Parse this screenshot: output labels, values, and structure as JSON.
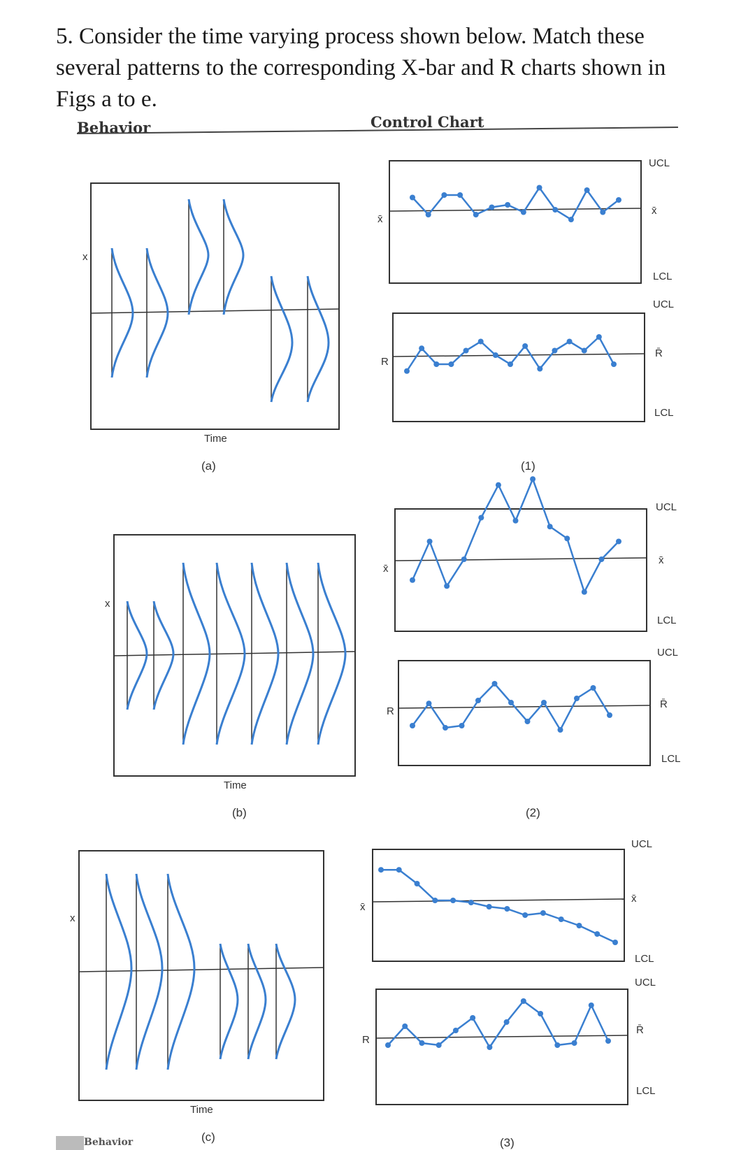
{
  "question": {
    "text": "5. Consider the time varying process shown below. Match these several patterns to the corresponding X-bar and R charts shown in Figs a to e."
  },
  "table_headers": {
    "behavior": "Behavior",
    "control_chart": "Control Chart"
  },
  "behavior_panels": [
    {
      "caption": "(a)",
      "axis_label": "Time",
      "y_label": "x"
    },
    {
      "caption": "(b)",
      "axis_label": "Time",
      "y_label": "x"
    },
    {
      "caption": "(c)",
      "axis_label": "Time",
      "y_label": "x"
    }
  ],
  "chart_labels": {
    "ucl": "UCL",
    "lcl": "LCL",
    "xbar_center": "x̄",
    "r_center": "R̄",
    "xbar_axis": "x̄",
    "r_axis": "R"
  },
  "footer": {
    "behavior": "Behavior"
  },
  "colors": {
    "line": "#3a7fd0",
    "frame": "#333333"
  },
  "chart_data": [
    {
      "type": "line",
      "title": "(1)",
      "chart": "X-bar",
      "series": [
        {
          "values": [
            0.25,
            -0.1,
            0.3,
            0.3,
            -0.1,
            0.05,
            0.1,
            -0.05,
            0.45,
            0.0,
            -0.2,
            0.4,
            -0.05,
            0.2
          ]
        }
      ],
      "ylim": [
        -1,
        1
      ]
    },
    {
      "type": "line",
      "title": "(1)",
      "chart": "R",
      "series": [
        {
          "values": [
            -0.35,
            0.15,
            -0.2,
            -0.2,
            0.1,
            0.3,
            0.0,
            -0.2,
            0.2,
            -0.3,
            0.1,
            0.3,
            0.1,
            0.4,
            -0.2
          ]
        }
      ],
      "ylim": [
        -1,
        1
      ]
    },
    {
      "type": "line",
      "title": "(2)",
      "chart": "X-bar",
      "series": [
        {
          "values": [
            -0.35,
            0.3,
            -0.45,
            0.0,
            0.7,
            1.25,
            0.65,
            1.35,
            0.55,
            0.35,
            -0.55,
            0.0,
            0.3
          ]
        }
      ],
      "ylim": [
        -1,
        1
      ]
    },
    {
      "type": "line",
      "title": "(2)",
      "chart": "R",
      "series": [
        {
          "values": [
            -0.45,
            0.08,
            -0.5,
            -0.45,
            0.15,
            0.55,
            0.1,
            -0.35,
            0.1,
            -0.55,
            0.2,
            0.45,
            -0.2
          ]
        }
      ],
      "ylim": [
        -1,
        1
      ]
    },
    {
      "type": "line",
      "title": "(3)",
      "chart": "X-bar",
      "series": [
        {
          "values": [
            0.73,
            0.73,
            0.4,
            0.0,
            0.0,
            -0.05,
            -0.15,
            -0.2,
            -0.35,
            -0.3,
            -0.45,
            -0.6,
            -0.8,
            -1.0
          ]
        }
      ],
      "ylim": [
        -1,
        1
      ]
    },
    {
      "type": "line",
      "title": "(3)",
      "chart": "R",
      "series": [
        {
          "values": [
            -0.2,
            0.25,
            -0.15,
            -0.2,
            0.15,
            0.45,
            -0.25,
            0.35,
            0.85,
            0.55,
            -0.2,
            -0.15,
            0.75,
            -0.1
          ]
        }
      ],
      "ylim": [
        -1,
        1
      ]
    }
  ]
}
